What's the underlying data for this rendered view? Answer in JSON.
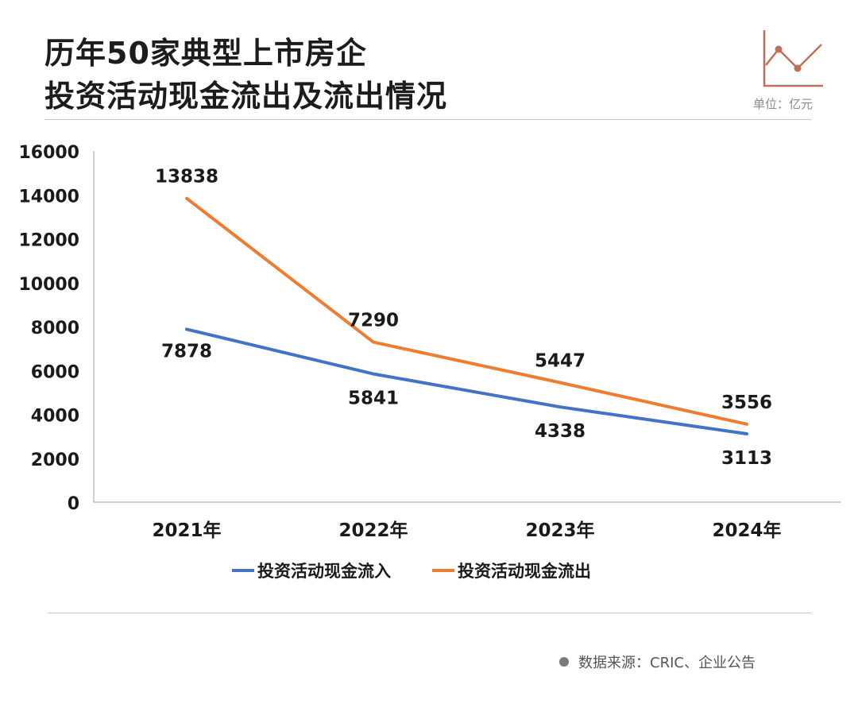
{
  "title": {
    "line1": "历年50家典型上市房企",
    "line2": "投资活动现金流出及流出情况"
  },
  "unit": "单位：亿元",
  "source": "数据来源：CRIC、企业公告",
  "colors": {
    "inflow": "#4472c4",
    "outflow": "#ed7d31",
    "axis": "#bfbfbf",
    "logo": "#c0705a"
  },
  "chart_data": {
    "type": "line",
    "categories": [
      "2021年",
      "2022年",
      "2023年",
      "2024年"
    ],
    "series": [
      {
        "name": "投资活动现金流入",
        "values": [
          7878,
          5841,
          4338,
          3113
        ]
      },
      {
        "name": "投资活动现金流出",
        "values": [
          13838,
          7290,
          5447,
          3556
        ]
      }
    ],
    "ylim": [
      0,
      16000
    ],
    "yticks": [
      0,
      2000,
      4000,
      6000,
      8000,
      10000,
      12000,
      14000,
      16000
    ],
    "grid": false,
    "legend": "bottom"
  }
}
